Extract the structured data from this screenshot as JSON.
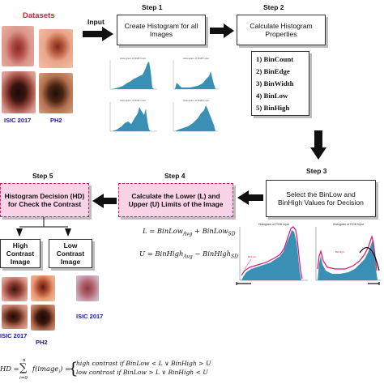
{
  "datasets": {
    "title": "Datasets",
    "input_label": "Input",
    "isic_label": "ISIC 2017",
    "ph2_label": "PH2"
  },
  "step1": {
    "label": "Step 1",
    "box_text": "Create Histogram for all Images"
  },
  "step2": {
    "label": "Step 2",
    "box_text": "Calculate Histogram Properties",
    "properties": [
      "1) BinCount",
      "2) BinEdge",
      "3) BinWidth",
      "4) BinLow",
      "5) BinHigh"
    ]
  },
  "step3": {
    "label": "Step 3",
    "box_text": "Select the BinLow and BinHigh Values for Decision",
    "plot_titles": [
      "Histogram of RGB Input",
      "Histogram of RGB Input"
    ]
  },
  "step4": {
    "label": "Step 4",
    "box_text": "Calculate the Lower (L) and Upper (U) Limits of the Image",
    "formula_L": "L = BinLow_Avg + BinLow_SD",
    "formula_U": "U = BinHigh_Avg − BinHigh_SD"
  },
  "step5": {
    "label": "Step 5",
    "box_text": "Histogram Decision (HD) for Check the Contrast",
    "high_contrast": "High Contrast Image",
    "low_contrast": "Low Contrast Image"
  },
  "results": {
    "isic_label_high": "ISIC 2017",
    "ph2_label_high": "PH2",
    "isic_label_low": "ISIC 2017"
  },
  "hd_formula": {
    "lhs": "HD = ∑ f(image_i) =",
    "sum_top": "n",
    "sum_bottom": "i=0",
    "case1": "high contrast  if BinLow < L ∨ BinHigh > U",
    "case2": "low contrast  if BinLow > L ∨ BinHigh < U"
  },
  "colors": {
    "pink_fill": "#fbd3e6",
    "pink_border": "#d9166f",
    "label_blue": "#1a1a8c",
    "dataset_red": "#e0201c",
    "hist_teal": "#3a8fb5"
  }
}
